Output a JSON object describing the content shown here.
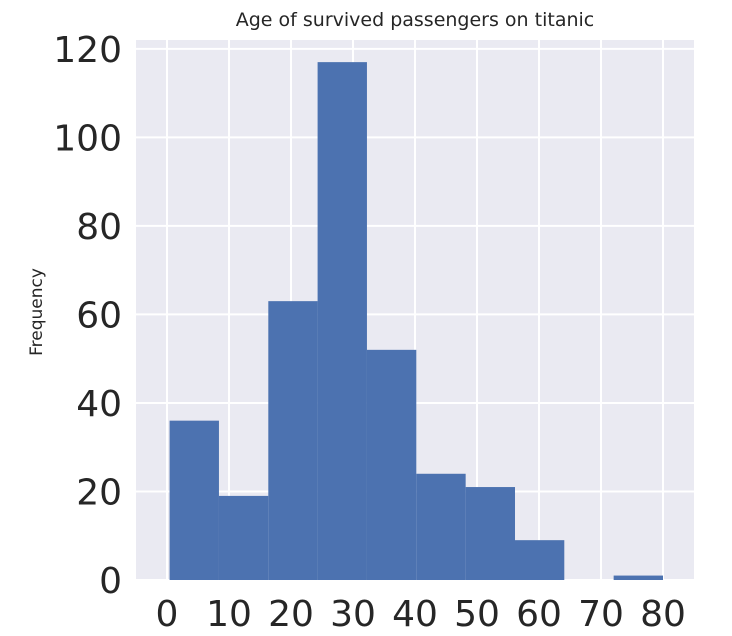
{
  "chart_data": {
    "type": "histogram",
    "title": "Age of survived passengers on titanic",
    "xlabel": "",
    "ylabel": "Frequency",
    "xlim": [
      -5,
      85
    ],
    "ylim": [
      0,
      122
    ],
    "xticks": [
      0,
      10,
      20,
      30,
      40,
      50,
      60,
      70,
      80
    ],
    "yticks": [
      0,
      20,
      40,
      60,
      80,
      100,
      120
    ],
    "grid": true,
    "bin_edges": [
      0.42,
      8.38,
      16.34,
      24.29,
      32.25,
      40.21,
      48.17,
      56.13,
      64.08,
      72.04,
      80.0
    ],
    "counts": [
      36,
      19,
      63,
      117,
      52,
      24,
      21,
      9,
      0,
      1
    ],
    "bar_color": "#4c72b0",
    "background_color": "#eaeaf2"
  }
}
